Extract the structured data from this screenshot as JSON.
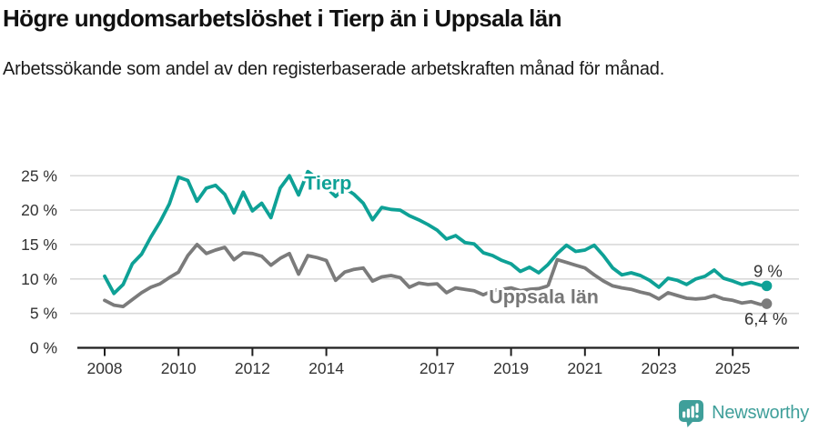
{
  "header": {
    "title": "Högre ungdomsarbetslöshet i Tierp än i Uppsala län",
    "subtitle": "Arbetssökande som andel av den registerbaserade arbetskraften månad för månad."
  },
  "footer": {
    "brand": "Newsworthy",
    "brand_color": "#3f9f9a",
    "logo_icon": "newsworthy-speech-bubble-bar-chart-icon"
  },
  "colors": {
    "tierp_line": "#0ea196",
    "uppsala_line": "#7b7b7b",
    "uppsala_label": "#767676",
    "grid": "#d9d9d9",
    "axis": "#1f1f1f",
    "tick_text": "#333333",
    "end_label_text": "#333333",
    "background": "#ffffff"
  },
  "chart_data": {
    "type": "line",
    "title": "Högre ungdomsarbetslöshet i Tierp än i Uppsala län",
    "subtitle": "Arbetssökande som andel av den registerbaserade arbetskraften månad för månad.",
    "xlabel": "",
    "ylabel": "",
    "x_unit": "year (monthly series, sampled quarterly)",
    "y_unit": "percent",
    "xlim": [
      2007.25,
      2026.8
    ],
    "ylim": [
      0,
      26
    ],
    "grid": "horizontal",
    "legend_position": "inline-labels-on-lines",
    "y_ticks": [
      {
        "value": 0,
        "label": "0 %"
      },
      {
        "value": 5,
        "label": "5 %"
      },
      {
        "value": 10,
        "label": "10 %"
      },
      {
        "value": 15,
        "label": "15 %"
      },
      {
        "value": 20,
        "label": "20 %"
      },
      {
        "value": 25,
        "label": "25 %"
      }
    ],
    "x_ticks": [
      {
        "value": 2008,
        "label": "2008"
      },
      {
        "value": 2010,
        "label": "2010"
      },
      {
        "value": 2012,
        "label": "2012"
      },
      {
        "value": 2014,
        "label": "2014"
      },
      {
        "value": 2017,
        "label": "2017"
      },
      {
        "value": 2019,
        "label": "2019"
      },
      {
        "value": 2021,
        "label": "2021"
      },
      {
        "value": 2023,
        "label": "2023"
      },
      {
        "value": 2025,
        "label": "2025"
      }
    ],
    "x": [
      2008.0,
      2008.25,
      2008.5,
      2008.75,
      2009.0,
      2009.25,
      2009.5,
      2009.75,
      2010.0,
      2010.25,
      2010.5,
      2010.75,
      2011.0,
      2011.25,
      2011.5,
      2011.75,
      2012.0,
      2012.25,
      2012.5,
      2012.75,
      2013.0,
      2013.25,
      2013.5,
      2013.75,
      2014.0,
      2014.25,
      2014.5,
      2014.75,
      2015.0,
      2015.25,
      2015.5,
      2015.75,
      2016.0,
      2016.25,
      2016.5,
      2016.75,
      2017.0,
      2017.25,
      2017.5,
      2017.75,
      2018.0,
      2018.25,
      2018.5,
      2018.75,
      2019.0,
      2019.25,
      2019.5,
      2019.75,
      2020.0,
      2020.25,
      2020.5,
      2020.75,
      2021.0,
      2021.25,
      2021.5,
      2021.75,
      2022.0,
      2022.25,
      2022.5,
      2022.75,
      2023.0,
      2023.25,
      2023.5,
      2023.75,
      2024.0,
      2024.25,
      2024.5,
      2024.75,
      2025.0,
      2025.25,
      2025.5,
      2025.75,
      2025.92
    ],
    "series": [
      {
        "name": "Tierp",
        "color": "#0ea196",
        "end_label": "9 %",
        "end_value": 9.0,
        "label_x": 2013.4,
        "label_y": 23.9,
        "values": [
          10.4,
          7.9,
          9.2,
          12.2,
          13.6,
          16.1,
          18.3,
          20.9,
          24.8,
          24.3,
          21.3,
          23.2,
          23.6,
          22.3,
          19.6,
          22.6,
          19.9,
          21.0,
          18.9,
          23.2,
          25.0,
          22.2,
          25.6,
          24.6,
          23.3,
          22.0,
          23.2,
          22.3,
          21.0,
          18.6,
          20.4,
          20.1,
          20.0,
          19.2,
          18.6,
          17.9,
          17.1,
          15.8,
          16.3,
          15.3,
          15.1,
          13.8,
          13.4,
          12.7,
          12.2,
          11.1,
          11.7,
          10.9,
          12.1,
          13.7,
          14.9,
          14.0,
          14.2,
          14.9,
          13.4,
          11.6,
          10.6,
          10.9,
          10.5,
          9.8,
          8.8,
          10.1,
          9.8,
          9.2,
          10.0,
          10.4,
          11.3,
          10.1,
          9.7,
          9.2,
          9.5,
          9.1,
          9.0
        ]
      },
      {
        "name": "Uppsala län",
        "color": "#7b7b7b",
        "end_label": "6,4 %",
        "end_value": 6.4,
        "label_x": 2018.4,
        "label_y": 7.4,
        "values": [
          6.9,
          6.2,
          6.0,
          7.0,
          8.0,
          8.8,
          9.3,
          10.2,
          11.0,
          13.4,
          15.0,
          13.7,
          14.2,
          14.6,
          12.8,
          13.8,
          13.7,
          13.3,
          12.0,
          13.0,
          13.7,
          10.7,
          13.4,
          13.1,
          12.7,
          9.8,
          11.0,
          11.4,
          11.6,
          9.7,
          10.3,
          10.5,
          10.2,
          8.8,
          9.4,
          9.2,
          9.3,
          8.0,
          8.7,
          8.5,
          8.3,
          7.7,
          8.3,
          8.5,
          8.7,
          8.3,
          8.5,
          8.6,
          9.0,
          12.8,
          12.4,
          12.0,
          11.6,
          10.6,
          9.7,
          9.0,
          8.7,
          8.5,
          8.1,
          7.8,
          7.1,
          8.0,
          7.6,
          7.2,
          7.1,
          7.2,
          7.6,
          7.1,
          6.9,
          6.5,
          6.7,
          6.3,
          6.4
        ]
      }
    ]
  }
}
